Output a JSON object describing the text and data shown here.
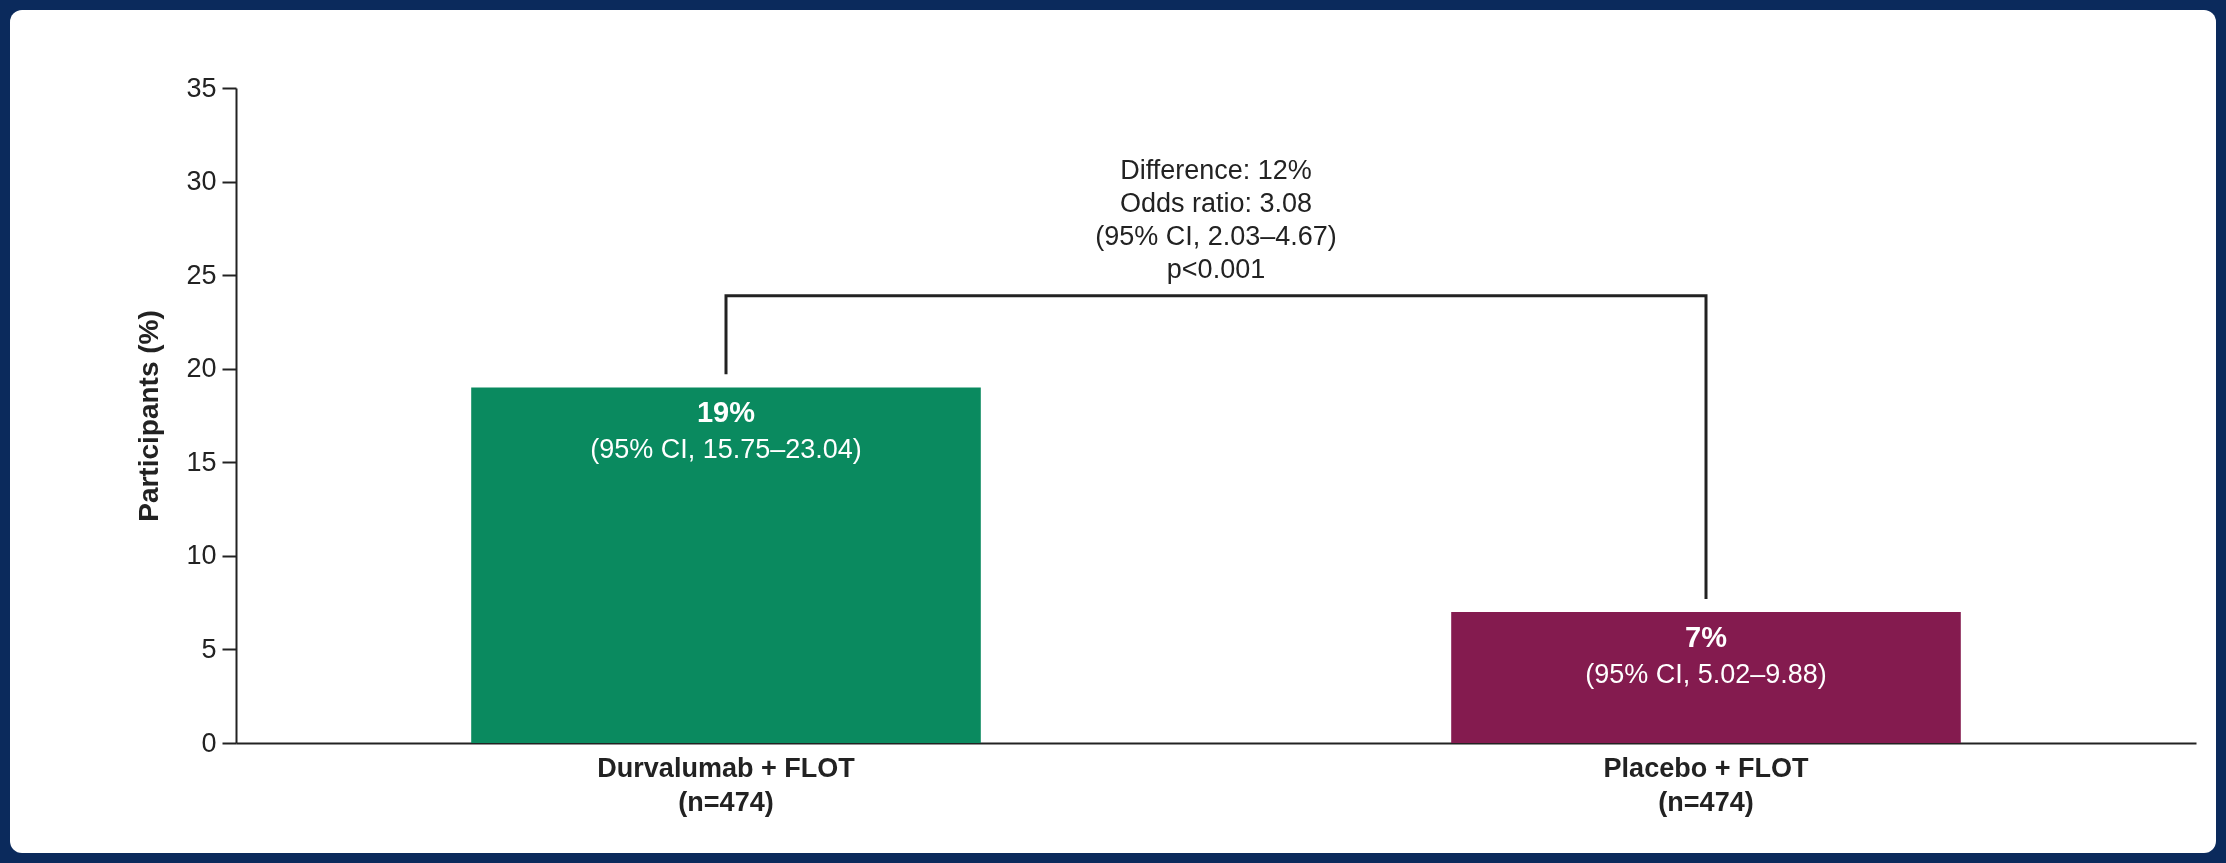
{
  "chart_data": {
    "type": "bar",
    "ylabel": "Participants (%)",
    "categories": [
      "Durvalumab + FLOT\n(n=474)",
      "Placebo + FLOT\n(n=474)"
    ],
    "values": [
      19,
      7
    ],
    "colors": [
      "#0a8a5f",
      "#841b4f"
    ],
    "value_labels": [
      "19%",
      "7%"
    ],
    "ylim": [
      0,
      35
    ],
    "yticks": [
      0,
      5,
      10,
      15,
      20,
      25,
      30,
      35
    ],
    "grid": false,
    "legend": false,
    "annotations": [
      {
        "text": "(95% CI, 15.75–23.04)",
        "x": "Durvalumab + FLOT\n(n=474)",
        "y": 19
      },
      {
        "text": "(95% CI, 5.02–9.88)",
        "x": "Placebo + FLOT\n(n=474)",
        "y": 7
      },
      "Difference: 12%\nOdds ratio: 3.08\n(95% CI, 2.03–4.67)\np<0.001"
    ]
  }
}
